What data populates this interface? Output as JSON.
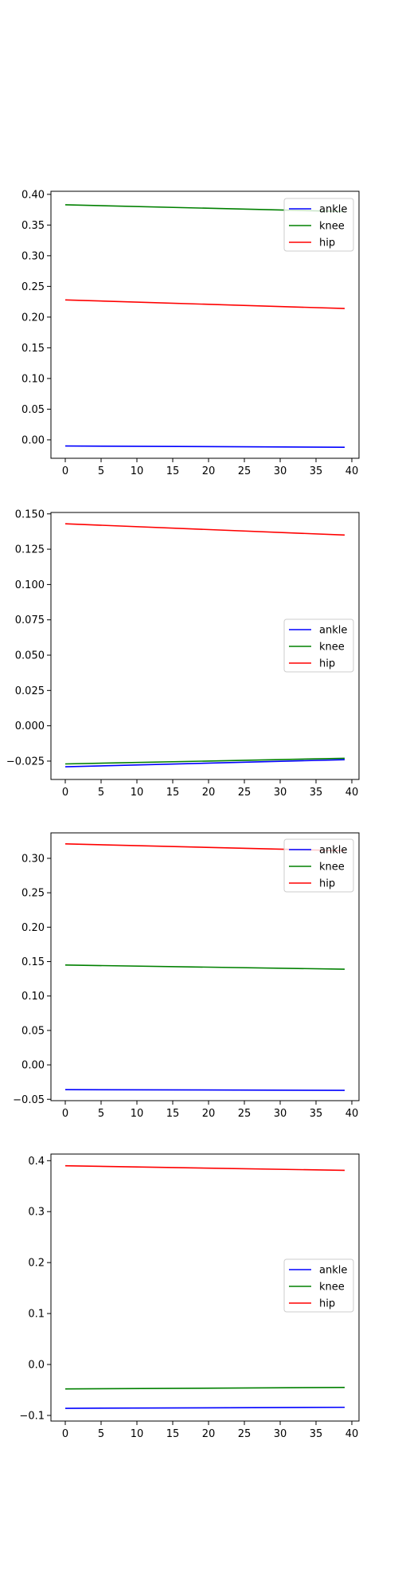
{
  "chart_data": [
    {
      "type": "line",
      "x": [
        0,
        39
      ],
      "xticks": [
        0,
        5,
        10,
        15,
        20,
        25,
        30,
        35,
        40
      ],
      "xlim": [
        -2,
        41
      ],
      "ylim": [
        -0.03,
        0.405
      ],
      "yticks": [
        "0.40",
        "0.35",
        "0.30",
        "0.25",
        "0.20",
        "0.15",
        "0.10",
        "0.05",
        "0.00"
      ],
      "ytick_values": [
        0.4,
        0.35,
        0.3,
        0.25,
        0.2,
        0.15,
        0.1,
        0.05,
        0.0
      ],
      "grid": false,
      "legend_position": "top-right",
      "series": [
        {
          "name": "ankle",
          "color": "#0000ff",
          "values": [
            -0.01,
            -0.012
          ]
        },
        {
          "name": "knee",
          "color": "#008000",
          "values": [
            0.383,
            0.372
          ]
        },
        {
          "name": "hip",
          "color": "#ff0000",
          "values": [
            0.228,
            0.214
          ]
        }
      ]
    },
    {
      "type": "line",
      "x": [
        0,
        39
      ],
      "xticks": [
        0,
        5,
        10,
        15,
        20,
        25,
        30,
        35,
        40
      ],
      "xlim": [
        -2,
        41
      ],
      "ylim": [
        -0.038,
        0.151
      ],
      "yticks": [
        "0.150",
        "0.125",
        "0.100",
        "0.075",
        "0.050",
        "0.025",
        "0.000",
        "−0.025"
      ],
      "ytick_values": [
        0.15,
        0.125,
        0.1,
        0.075,
        0.05,
        0.025,
        0.0,
        -0.025
      ],
      "grid": false,
      "legend_position": "center-right",
      "series": [
        {
          "name": "ankle",
          "color": "#0000ff",
          "values": [
            -0.029,
            -0.024
          ]
        },
        {
          "name": "knee",
          "color": "#008000",
          "values": [
            -0.027,
            -0.023
          ]
        },
        {
          "name": "hip",
          "color": "#ff0000",
          "values": [
            0.143,
            0.135
          ]
        }
      ]
    },
    {
      "type": "line",
      "x": [
        0,
        39
      ],
      "xticks": [
        0,
        5,
        10,
        15,
        20,
        25,
        30,
        35,
        40
      ],
      "xlim": [
        -2,
        41
      ],
      "ylim": [
        -0.052,
        0.337
      ],
      "yticks": [
        "0.30",
        "0.25",
        "0.20",
        "0.15",
        "0.10",
        "0.05",
        "0.00",
        "−0.05"
      ],
      "ytick_values": [
        0.3,
        0.25,
        0.2,
        0.15,
        0.1,
        0.05,
        0.0,
        -0.05
      ],
      "grid": false,
      "legend_position": "top-right",
      "series": [
        {
          "name": "ankle",
          "color": "#0000ff",
          "values": [
            -0.036,
            -0.037
          ]
        },
        {
          "name": "knee",
          "color": "#008000",
          "values": [
            0.145,
            0.139
          ]
        },
        {
          "name": "hip",
          "color": "#ff0000",
          "values": [
            0.321,
            0.311
          ]
        }
      ]
    },
    {
      "type": "line",
      "x": [
        0,
        39
      ],
      "xticks": [
        0,
        5,
        10,
        15,
        20,
        25,
        30,
        35,
        40
      ],
      "xlim": [
        -2,
        41
      ],
      "ylim": [
        -0.111,
        0.413
      ],
      "yticks": [
        "0.4",
        "0.3",
        "0.2",
        "0.1",
        "0.0",
        "−0.1"
      ],
      "ytick_values": [
        0.4,
        0.3,
        0.2,
        0.1,
        0.0,
        -0.1
      ],
      "grid": false,
      "legend_position": "center-right",
      "series": [
        {
          "name": "ankle",
          "color": "#0000ff",
          "values": [
            -0.086,
            -0.084
          ]
        },
        {
          "name": "knee",
          "color": "#008000",
          "values": [
            -0.048,
            -0.045
          ]
        },
        {
          "name": "hip",
          "color": "#ff0000",
          "values": [
            0.39,
            0.381
          ]
        }
      ]
    }
  ]
}
